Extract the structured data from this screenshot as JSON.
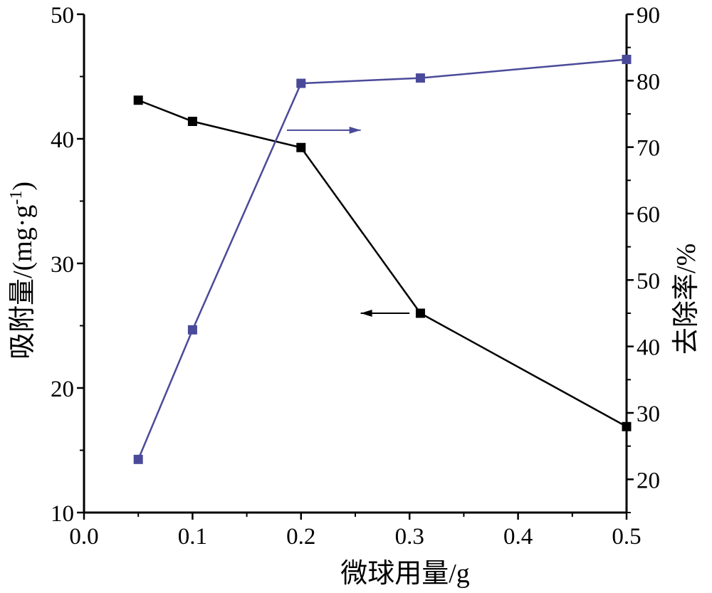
{
  "chart_data": {
    "type": "line",
    "xlabel": "微球用量/g",
    "ylabel": "吸附量/(mg·g",
    "ylabel_sup": "-1",
    "ylabel_close": ")",
    "y2label": "去除率/%",
    "xlim": [
      0.0,
      0.5
    ],
    "ylim": [
      10,
      50
    ],
    "y2lim": [
      15,
      90
    ],
    "x_ticks": [
      0.0,
      0.1,
      0.2,
      0.3,
      0.4,
      0.5
    ],
    "x_tick_labels": [
      "0.0",
      "0.1",
      "0.2",
      "0.3",
      "0.4",
      "0.5"
    ],
    "y_ticks": [
      10,
      20,
      30,
      40,
      50
    ],
    "y_tick_labels": [
      "10",
      "20",
      "30",
      "40",
      "50"
    ],
    "y2_ticks": [
      20,
      30,
      40,
      50,
      60,
      70,
      80,
      90
    ],
    "y2_tick_labels": [
      "20",
      "30",
      "40",
      "50",
      "60",
      "70",
      "80",
      "90"
    ],
    "grid": false,
    "legend": "none",
    "series": [
      {
        "axis": "left",
        "color": "#000000",
        "marker": "square",
        "x": [
          0.05,
          0.1,
          0.2,
          0.31,
          0.5
        ],
        "y": [
          43.1,
          41.4,
          39.3,
          26.0,
          16.9
        ]
      },
      {
        "axis": "right",
        "color": "#4a4a9a",
        "marker": "square",
        "x": [
          0.05,
          0.1,
          0.2,
          0.31,
          0.5
        ],
        "y": [
          23.0,
          42.5,
          79.6,
          80.4,
          83.2
        ]
      }
    ],
    "annotations": [
      {
        "type": "arrow",
        "direction": "right",
        "series": 1,
        "color": "#4a4a9a"
      },
      {
        "type": "arrow",
        "direction": "left",
        "series": 0,
        "color": "#000000"
      }
    ]
  }
}
